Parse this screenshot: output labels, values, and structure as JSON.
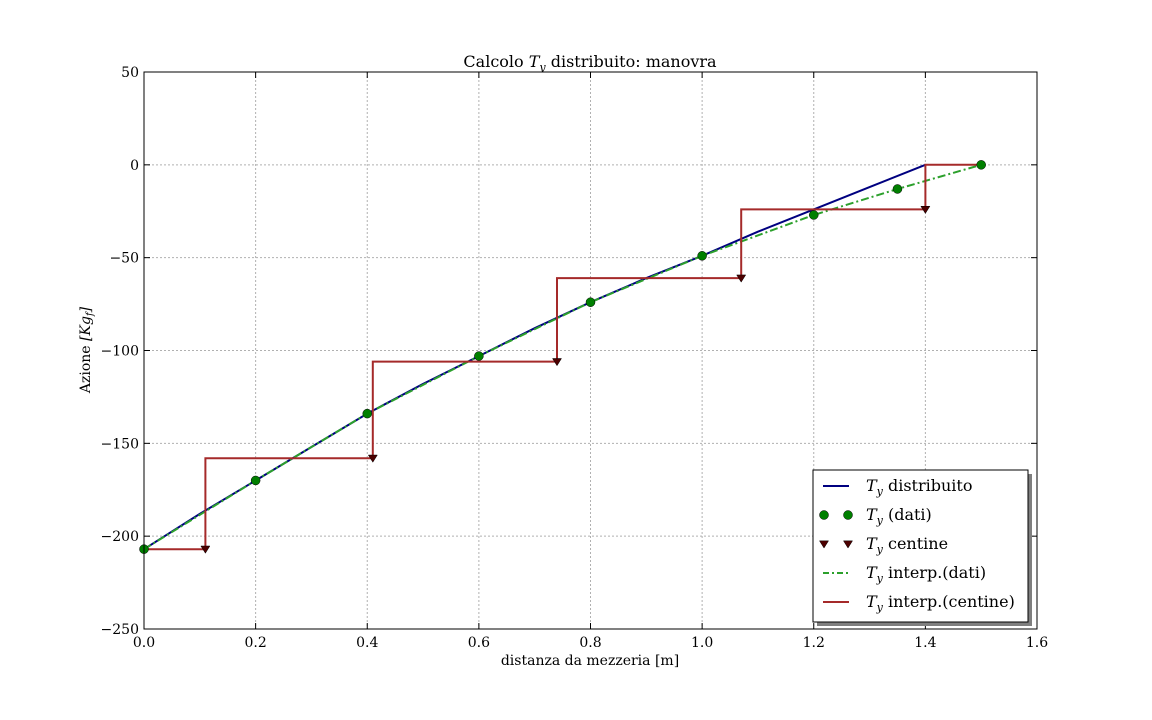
{
  "chart_data": {
    "type": "line",
    "title": {
      "pre": "Calcolo ",
      "sym": "T",
      "sub": "y",
      "post": " distribuito: manovra"
    },
    "xlabel": "distanza da mezzeria [m]",
    "ylabel": {
      "pre": "Azione ",
      "math": "[Kg",
      "sub": "f",
      "close": "]"
    },
    "xlim": [
      0.0,
      1.6
    ],
    "ylim": [
      -250,
      50
    ],
    "x_ticks": [
      0.0,
      0.2,
      0.4,
      0.6,
      0.8,
      1.0,
      1.2,
      1.4,
      1.6
    ],
    "x_tick_labels": [
      "0.0",
      "0.2",
      "0.4",
      "0.6",
      "0.8",
      "1.0",
      "1.2",
      "1.4",
      "1.6"
    ],
    "y_ticks": [
      50,
      0,
      -50,
      -100,
      -150,
      -200,
      -250
    ],
    "y_tick_labels": [
      "50",
      "0",
      "−50",
      "−100",
      "−150",
      "−200",
      "−250"
    ],
    "grid": true,
    "legend_position": "bottom-right",
    "series": [
      {
        "key": "distribuito",
        "name": {
          "sym": "T",
          "sub": "y",
          "text": "distribuito"
        },
        "style": "line",
        "color": "#000080",
        "x": [
          0.0,
          0.1,
          0.2,
          0.3,
          0.4,
          0.5,
          0.6,
          0.7,
          0.8,
          0.9,
          1.0,
          1.1,
          1.2,
          1.3,
          1.4
        ],
        "y": [
          -207,
          -188,
          -170,
          -152,
          -134,
          -118,
          -103,
          -88,
          -74,
          -61,
          -49,
          -36,
          -24,
          -12,
          0
        ]
      },
      {
        "key": "dati",
        "name": {
          "sym": "T",
          "sub": "y",
          "text": "(dati)"
        },
        "style": "markers-circle",
        "color": "#007f00",
        "x": [
          0.0,
          0.2,
          0.4,
          0.6,
          0.8,
          1.0,
          1.2,
          1.35,
          1.5
        ],
        "y": [
          -207,
          -170,
          -134,
          -103,
          -74,
          -49,
          -27,
          -13,
          0
        ]
      },
      {
        "key": "centine",
        "name": {
          "sym": "T",
          "sub": "y",
          "text": "centine"
        },
        "style": "markers-triangle-down",
        "color": "#4d0000",
        "x": [
          0.11,
          0.41,
          0.74,
          1.07,
          1.4
        ],
        "y": [
          -207,
          -158,
          -106,
          -61,
          -24
        ]
      },
      {
        "key": "interp-dati",
        "name": {
          "sym": "T",
          "sub": "y",
          "text": "interp.(dati)"
        },
        "style": "dashdot",
        "color": "#2ca02c",
        "x": [
          0.0,
          0.2,
          0.4,
          0.6,
          0.8,
          1.0,
          1.2,
          1.35,
          1.5
        ],
        "y": [
          -207,
          -170,
          -134,
          -103,
          -74,
          -49,
          -27,
          -13,
          0
        ]
      },
      {
        "key": "interp-centine",
        "name": {
          "sym": "T",
          "sub": "y",
          "text": "interp.(centine)"
        },
        "style": "step",
        "color": "#a52a2a",
        "x": [
          0.0,
          0.11,
          0.11,
          0.41,
          0.41,
          0.74,
          0.74,
          1.07,
          1.07,
          1.4,
          1.4,
          1.5
        ],
        "y": [
          -207,
          -207,
          -158,
          -158,
          -106,
          -106,
          -61,
          -61,
          -24,
          -24,
          0,
          0
        ]
      }
    ]
  }
}
